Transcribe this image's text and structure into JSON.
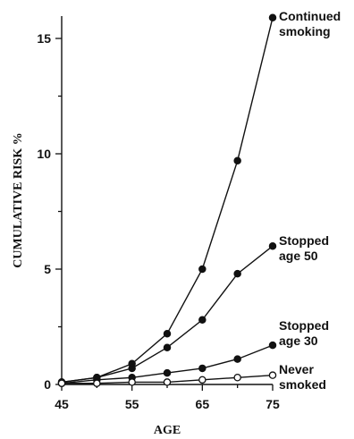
{
  "chart_data": {
    "type": "line",
    "title": "",
    "xlabel": "AGE",
    "ylabel": "CUMULATIVE RISK %",
    "x": [
      45,
      50,
      55,
      60,
      65,
      70,
      75
    ],
    "xticks": [
      "45",
      "55",
      "65",
      "75"
    ],
    "yticks": [
      "0",
      "5",
      "10",
      "15"
    ],
    "xlim": [
      45,
      75
    ],
    "ylim": [
      0,
      15
    ],
    "grid": false,
    "series": [
      {
        "name": "Continued smoking",
        "label_lines": [
          "Continued",
          "smoking"
        ],
        "marker": "filled",
        "values": [
          0.1,
          0.3,
          0.9,
          2.2,
          5.0,
          9.7,
          15.9
        ]
      },
      {
        "name": "Stopped age 50",
        "label_lines": [
          "Stopped",
          "age 50"
        ],
        "marker": "filled",
        "values": [
          0.1,
          0.3,
          0.7,
          1.6,
          2.8,
          4.8,
          6.0
        ]
      },
      {
        "name": "Stopped age 30",
        "label_lines": [
          "Stopped",
          "age 30"
        ],
        "marker": "filled",
        "values": [
          0.05,
          0.2,
          0.3,
          0.5,
          0.7,
          1.1,
          1.7
        ]
      },
      {
        "name": "Never smoked",
        "label_lines": [
          "Never",
          "smoked"
        ],
        "marker": "open",
        "values": [
          0.05,
          0.05,
          0.1,
          0.1,
          0.2,
          0.3,
          0.4
        ]
      }
    ]
  }
}
